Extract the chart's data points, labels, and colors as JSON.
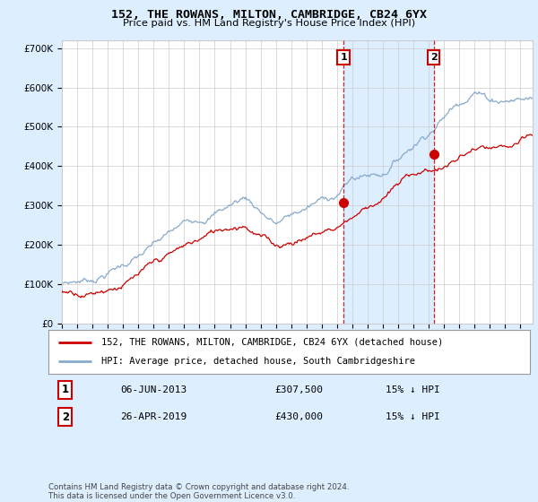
{
  "title": "152, THE ROWANS, MILTON, CAMBRIDGE, CB24 6YX",
  "subtitle": "Price paid vs. HM Land Registry's House Price Index (HPI)",
  "legend_label_red": "152, THE ROWANS, MILTON, CAMBRIDGE, CB24 6YX (detached house)",
  "legend_label_blue": "HPI: Average price, detached house, South Cambridgeshire",
  "transaction_1_date": "06-JUN-2013",
  "transaction_1_price": "£307,500",
  "transaction_1_hpi": "15% ↓ HPI",
  "transaction_1_year": 2013.43,
  "transaction_1_value": 307500,
  "transaction_2_date": "26-APR-2019",
  "transaction_2_price": "£430,000",
  "transaction_2_hpi": "15% ↓ HPI",
  "transaction_2_year": 2019.32,
  "transaction_2_value": 430000,
  "red_color": "#cc0000",
  "blue_color": "#88aacc",
  "span_color": "#ddeeff",
  "vline_color": "#cc0000",
  "background_color": "#ddeeff",
  "plot_bg_color": "#ffffff",
  "grid_color": "#cccccc",
  "ylim": [
    0,
    720000
  ],
  "xlim_start": 1995.0,
  "xlim_end": 2025.8,
  "footer_text": "Contains HM Land Registry data © Crown copyright and database right 2024.\nThis data is licensed under the Open Government Licence v3.0.",
  "yticks": [
    0,
    100000,
    200000,
    300000,
    400000,
    500000,
    600000,
    700000
  ],
  "ytick_labels": [
    "£0",
    "£100K",
    "£200K",
    "£300K",
    "£400K",
    "£500K",
    "£600K",
    "£700K"
  ]
}
